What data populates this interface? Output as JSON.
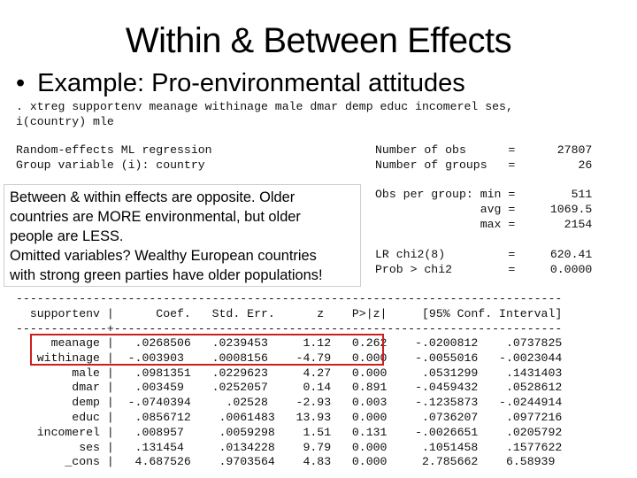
{
  "slide": {
    "title": "Within & Between Effects",
    "bullet": "Example:  Pro-environmental attitudes"
  },
  "command": [
    ". xtreg supportenv meanage withinage male dmar demp educ incomerel ses,",
    "i(country) mle"
  ],
  "header_left": [
    "Random-effects ML regression",
    "Group variable (i): country"
  ],
  "header_right": [
    "Number of obs      =      27807",
    "Number of groups   =         26"
  ],
  "obs_stats": [
    "Obs per group: min =        511",
    "               avg =     1069.5",
    "               max =       2154"
  ],
  "lr_stats": [
    "LR chi2(8)         =     620.41",
    "Prob > chi2        =     0.0000"
  ],
  "callout": {
    "lines": [
      "Between & within effects are opposite.  Older",
      "countries are MORE environmental, but older",
      "people are LESS.",
      "Omitted variables?  Wealthy European countries",
      "with strong green parties have older populations!"
    ]
  },
  "table": {
    "rule": "------------------------------------------------------------------------------",
    "header": "  supportenv |      Coef.   Std. Err.      z    P>|z|     [95% Conf. Interval]",
    "subrule": "-------------+----------------------------------------------------------------",
    "rows": [
      "     meanage |   .0268506   .0239453     1.12   0.262    -.0200812    .0737825",
      "   withinage |  -.003903    .0008156    -4.79   0.000    -.0055016   -.0023044",
      "        male |   .0981351   .0229623     4.27   0.000     .0531299    .1431403",
      "        dmar |   .003459    .0252057     0.14   0.891    -.0459432    .0528612",
      "        demp |  -.0740394     .02528    -2.93   0.003    -.1235873   -.0244914",
      "        educ |   .0856712    .0061483   13.93   0.000     .0736207    .0977216",
      "   incomerel |   .008957     .0059298    1.51   0.131    -.0026651    .0205792",
      "         ses |   .131454     .0134228    9.79   0.000     .1051458    .1577622",
      "       _cons |   4.687526    .9703564    4.83   0.000     2.785662    6.58939"
    ]
  },
  "colors": {
    "highlight": "#cc1f1f"
  }
}
